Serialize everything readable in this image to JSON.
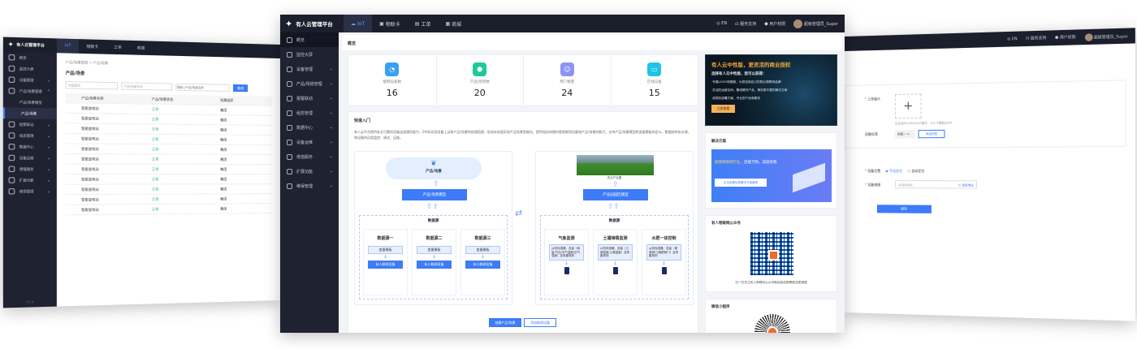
{
  "app": {
    "title": "有人云管理平台"
  },
  "topnav": {
    "tabs": [
      {
        "label": "IoT"
      },
      {
        "label": "物联卡"
      },
      {
        "label": "工单"
      },
      {
        "label": "商城"
      }
    ],
    "lang": "EN",
    "support": "服务支持",
    "permission": "用户权限",
    "user": "超级管理员_Super"
  },
  "sidebar": {
    "items": [
      {
        "label": "概览",
        "icon": "overview-icon"
      },
      {
        "label": "监控大屏",
        "icon": "monitor-icon"
      },
      {
        "label": "设备管理",
        "icon": "device-icon"
      },
      {
        "label": "产品/场景管理",
        "icon": "product-icon"
      },
      {
        "label": "报警联动",
        "icon": "alarm-icon"
      },
      {
        "label": "组态管理",
        "icon": "config-icon"
      },
      {
        "label": "数据中心",
        "icon": "data-icon"
      },
      {
        "label": "设备运维",
        "icon": "ops-icon"
      },
      {
        "label": "增值服务",
        "icon": "value-icon"
      },
      {
        "label": "扩展功能",
        "icon": "extend-icon"
      },
      {
        "label": "维保管理",
        "icon": "maintain-icon"
      }
    ],
    "sub_items": [
      {
        "label": "产品/场景模型"
      },
      {
        "label": "产品/场景"
      }
    ]
  },
  "overview": {
    "title": "概览",
    "stats": [
      {
        "label": "联网设备数",
        "value": "16",
        "color": "#3aa0f5"
      },
      {
        "label": "产品/场景数",
        "value": "20",
        "color": "#1dc99a"
      },
      {
        "label": "用户数量",
        "value": "24",
        "color": "#8c93f5"
      },
      {
        "label": "在线设备",
        "value": "15",
        "color": "#1fc3e6"
      }
    ],
    "quick_start": {
      "title": "快速入门",
      "desc": "有人云平台提供安全可靠的设备连接通信能力，0代码实现设备上云和产品/场景的快速搭建，低成本快速实现产品场景智能化。提供轻松快捷的管理联网设备和产品/场景的能力，支持产品/场景模型和变量模板的定义，数据结构化存储，和设备的远程监控、调试、运维。",
      "left": {
        "top": "产品/场景",
        "model": "产品/场景模型",
        "source": "数据源",
        "items": [
          {
            "title": "数据源一",
            "tpl": "变量模板",
            "dev": "有人联网设备"
          },
          {
            "title": "数据源二",
            "tpl": "变量模板",
            "dev": "有人联网设备"
          },
          {
            "title": "数据源三",
            "tpl": "变量模板",
            "dev": "有人联网设备"
          }
        ]
      },
      "right": {
        "caption": "农业产业园",
        "model": "产业园园区模型",
        "source": "数据源",
        "items": [
          {
            "title": "气象监测",
            "desc": "从机传感器、变量（雨量/气压/空气温度/空气湿度）及采集规则"
          },
          {
            "title": "土壤墒情监测",
            "desc": "从机传感器、变量（土壤湿度/土壤温度）及采集规则"
          },
          {
            "title": "水肥一体控制",
            "desc": "从机传感器、变量（灌溉阀门/施肥阀门）及采集规则"
          }
        ]
      },
      "create_btn": "创建产品/场景",
      "add_btn": "添加联网设备"
    }
  },
  "promo": {
    "title": "有人云中性版，更灵活的商业授权",
    "subtitle": "选择有人云中性版，您可以获得：",
    "points": [
      "·专属LOGO和图案，为您定制自己的物云物联网品牌",
      "·灵活的运营空间，集成硬件产品，策划更丰富的解决方案",
      "·成熟的部署方案，专业的产品和服务"
    ],
    "button": "立即查看"
  },
  "solutions": {
    "title": "解决方案",
    "slogan_a": "赋能物联网行业，",
    "slogan_b": "连接万物，成就你我",
    "button": "点击查看优质解决方案案例"
  },
  "wechat": {
    "title": "有人物联网公众号",
    "desc": "扫一扫关注有人物联网公众号微信接收报警推送更便捷"
  },
  "miniprogram": {
    "title": "微信小程序"
  },
  "list_page": {
    "breadcrumb": "产品/场景管理 > 产品/场景",
    "title": "产品/场景",
    "filter_org": "所属组织",
    "filter_status": "产品/场景状态",
    "search_placeholder": "请输入产品/场景名称",
    "search_btn": "查询",
    "columns": [
      "产品/场景名称",
      "产品/场景状态",
      "所属组织"
    ],
    "rows": [
      [
        "智能变电站",
        "正常",
        "集团"
      ],
      [
        "智能变电站",
        "正常",
        "集团"
      ],
      [
        "智能变电站",
        "正常",
        "集团"
      ],
      [
        "智能变电站",
        "正常",
        "集团"
      ],
      [
        "智能变电站",
        "正常",
        "集团"
      ],
      [
        "智能变电站",
        "正常",
        "集团"
      ],
      [
        "智能变电站",
        "正常",
        "集团"
      ],
      [
        "智能变电站",
        "正常",
        "集团"
      ],
      [
        "智能变电站",
        "正常",
        "集团"
      ],
      [
        "智能变电站",
        "正常",
        "集团"
      ],
      [
        "智能变电站",
        "正常",
        "集团"
      ]
    ],
    "version": "V1.0"
  },
  "form_page": {
    "upload_label": "上传图片",
    "upload_hint": "仅支持JPG/PNG/GIF格式，大小不要超过5M",
    "tag_label": "设备标签",
    "tag_value": "标签一",
    "add_tag": "添加标签",
    "location_label": "设备位置",
    "manual": "手动定位",
    "auto": "自动定位",
    "map_label": "设备地图",
    "map_placeholder": "未选择地址",
    "choose_address": "选择地址",
    "save": "保存"
  }
}
